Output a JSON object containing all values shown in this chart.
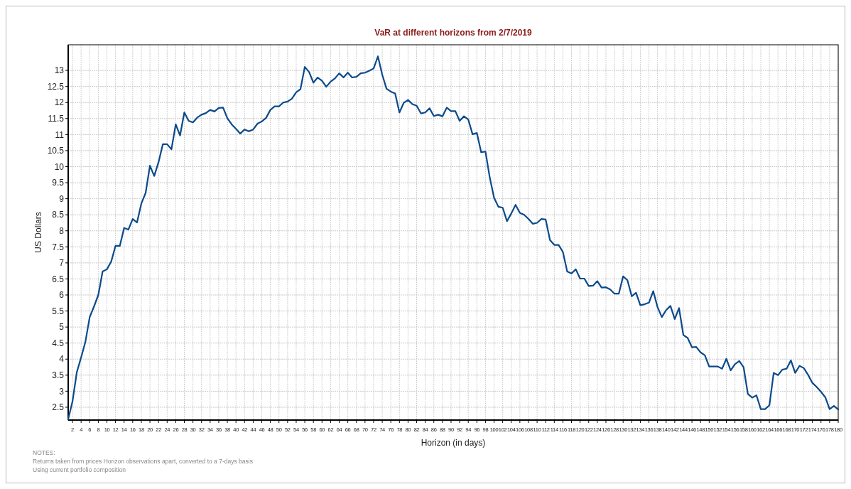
{
  "chart_data": {
    "type": "line",
    "title": "VaR at different horizons from 2/7/2019",
    "xlabel": "Horizon (in days)",
    "ylabel": "US Dollars",
    "annotations": [
      "NOTES:",
      "Returns taken from prices Horizon observations apart, converted to a 7-days basis",
      "Using current portfolio composition"
    ],
    "x": [
      1,
      2,
      3,
      4,
      5,
      6,
      7,
      8,
      9,
      10,
      11,
      12,
      13,
      14,
      15,
      16,
      17,
      18,
      19,
      20,
      21,
      22,
      23,
      24,
      25,
      26,
      27,
      28,
      29,
      30,
      31,
      32,
      33,
      34,
      35,
      36,
      37,
      38,
      39,
      40,
      41,
      42,
      43,
      44,
      45,
      46,
      47,
      48,
      49,
      50,
      51,
      52,
      53,
      54,
      55,
      56,
      57,
      58,
      59,
      60,
      61,
      62,
      63,
      64,
      65,
      66,
      67,
      68,
      69,
      70,
      71,
      72,
      73,
      74,
      75,
      76,
      77,
      78,
      79,
      80,
      81,
      82,
      83,
      84,
      85,
      86,
      87,
      88,
      89,
      90,
      91,
      92,
      93,
      94,
      95,
      96,
      97,
      98,
      99,
      100,
      101,
      102,
      103,
      104,
      105,
      106,
      107,
      108,
      109,
      110,
      111,
      112,
      113,
      114,
      115,
      116,
      117,
      118,
      119,
      120,
      121,
      122,
      123,
      124,
      125,
      126,
      127,
      128,
      129,
      130,
      131,
      132,
      133,
      134,
      135,
      136,
      137,
      138,
      139,
      140,
      141,
      142,
      143,
      144,
      145,
      146,
      147,
      148,
      149,
      150,
      151,
      152,
      153,
      154,
      155,
      156,
      157,
      158,
      159,
      160,
      161,
      162,
      163,
      164,
      165,
      166,
      167,
      168,
      169,
      170,
      171,
      172,
      173,
      174,
      175,
      176,
      177,
      178,
      179,
      180
    ],
    "series": [
      {
        "color": "#0b4a8b",
        "values": [
          2.13,
          2.68,
          3.59,
          4.05,
          4.54,
          5.31,
          5.64,
          6.0,
          6.73,
          6.8,
          7.04,
          7.53,
          7.53,
          8.09,
          8.04,
          8.37,
          8.26,
          8.85,
          9.18,
          10.03,
          9.71,
          10.14,
          10.7,
          10.7,
          10.54,
          11.32,
          10.97,
          11.69,
          11.43,
          11.38,
          11.53,
          11.62,
          11.67,
          11.77,
          11.72,
          11.83,
          11.84,
          11.51,
          11.32,
          11.18,
          11.03,
          11.16,
          11.1,
          11.16,
          11.34,
          11.41,
          11.52,
          11.77,
          11.88,
          11.88,
          12.0,
          12.03,
          12.12,
          12.32,
          12.42,
          13.11,
          12.95,
          12.62,
          12.78,
          12.68,
          12.49,
          12.65,
          12.75,
          12.91,
          12.78,
          12.93,
          12.78,
          12.8,
          12.91,
          12.93,
          12.99,
          13.06,
          13.44,
          12.87,
          12.43,
          12.34,
          12.28,
          11.69,
          11.99,
          12.08,
          11.95,
          11.9,
          11.66,
          11.69,
          11.82,
          11.58,
          11.62,
          11.57,
          11.84,
          11.73,
          11.73,
          11.43,
          11.57,
          11.47,
          11.01,
          11.05,
          10.45,
          10.47,
          9.66,
          9.03,
          8.75,
          8.72,
          8.3,
          8.54,
          8.81,
          8.56,
          8.5,
          8.37,
          8.22,
          8.25,
          8.37,
          8.35,
          7.71,
          7.56,
          7.56,
          7.34,
          6.73,
          6.67,
          6.8,
          6.51,
          6.51,
          6.28,
          6.29,
          6.43,
          6.23,
          6.24,
          6.17,
          6.04,
          6.04,
          6.58,
          6.46,
          5.96,
          6.07,
          5.68,
          5.71,
          5.76,
          6.12,
          5.62,
          5.31,
          5.53,
          5.66,
          5.25,
          5.59,
          4.75,
          4.66,
          4.37,
          4.38,
          4.21,
          4.12,
          3.77,
          3.77,
          3.77,
          3.7,
          4.01,
          3.65,
          3.84,
          3.94,
          3.75,
          2.91,
          2.8,
          2.87,
          2.44,
          2.44,
          2.56,
          3.57,
          3.5,
          3.67,
          3.7,
          3.96,
          3.57,
          3.79,
          3.72,
          3.51,
          3.26,
          3.13,
          2.98,
          2.81,
          2.44,
          2.54,
          2.43
        ]
      }
    ],
    "xlim": [
      1,
      180
    ],
    "xticks": [
      2,
      4,
      6,
      8,
      10,
      12,
      14,
      16,
      18,
      20,
      22,
      24,
      26,
      28,
      30,
      32,
      34,
      36,
      38,
      40,
      42,
      44,
      46,
      48,
      50,
      52,
      54,
      56,
      58,
      60,
      62,
      64,
      66,
      68,
      70,
      72,
      74,
      76,
      78,
      80,
      82,
      84,
      86,
      88,
      90,
      92,
      94,
      96,
      98,
      100,
      102,
      104,
      106,
      108,
      110,
      112,
      114,
      116,
      118,
      120,
      122,
      124,
      126,
      128,
      130,
      132,
      134,
      136,
      138,
      140,
      142,
      144,
      146,
      148,
      150,
      152,
      154,
      156,
      158,
      160,
      162,
      164,
      166,
      168,
      170,
      172,
      174,
      176,
      178,
      180
    ],
    "ylim": [
      2.1,
      13.8
    ],
    "yticks": [
      2.5,
      3,
      3.5,
      4,
      4.5,
      5,
      5.5,
      6,
      6.5,
      7,
      7.5,
      8,
      8.5,
      9,
      9.5,
      10,
      10.5,
      11,
      11.5,
      12,
      12.5,
      13
    ],
    "grid": true,
    "line_style": "solid",
    "marker": "none"
  }
}
